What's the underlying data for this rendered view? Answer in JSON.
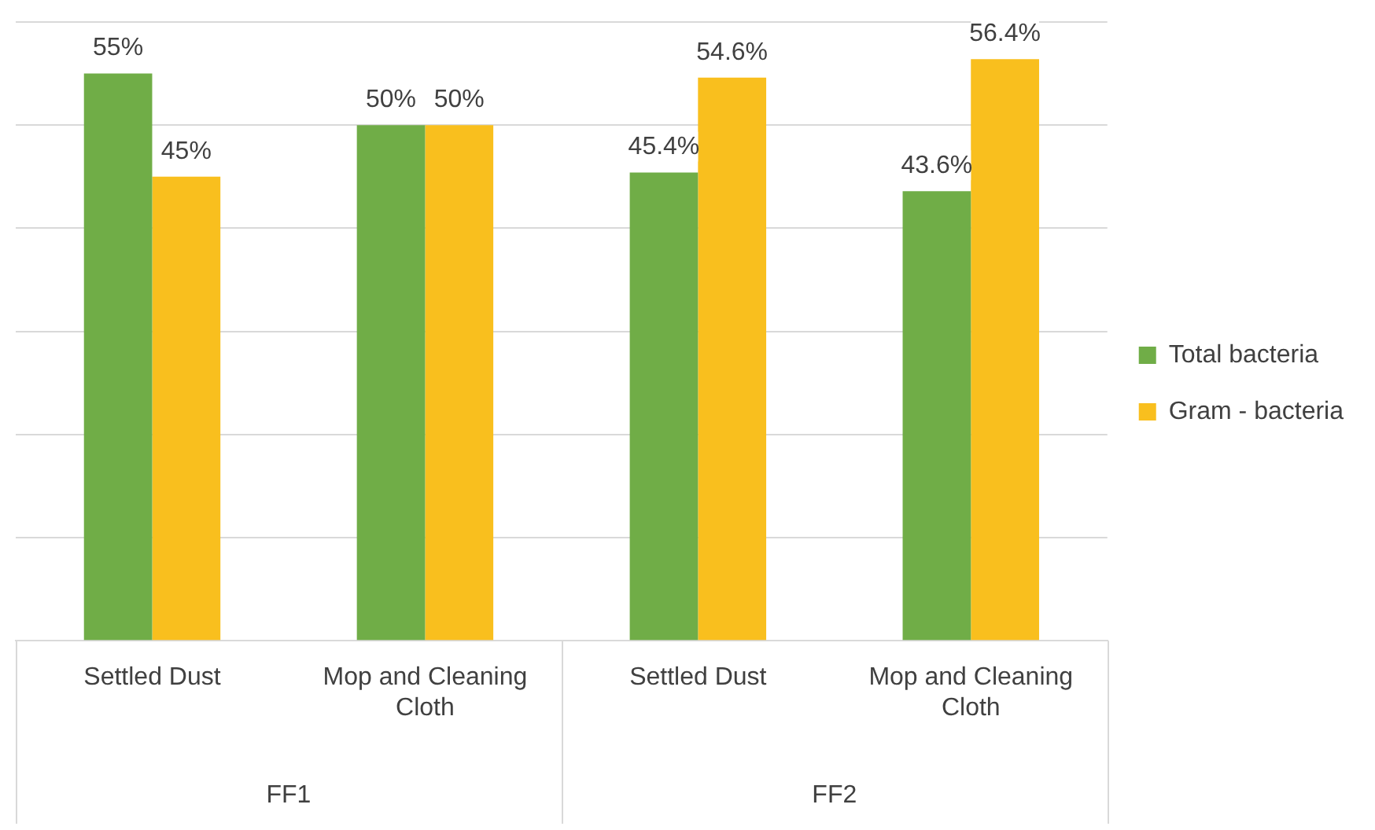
{
  "chart_data": {
    "type": "bar",
    "categories": [
      "Settled Dust",
      "Mop and Cleaning Cloth",
      "Settled Dust",
      "Mop and Cleaning Cloth"
    ],
    "annotations": [
      "FF1",
      "FF2"
    ],
    "series": [
      {
        "name": "Total bacteria",
        "color": "#70ad47",
        "values": [
          55,
          50,
          45.4,
          43.6
        ],
        "value_labels": [
          "55%",
          "50%",
          "45.4%",
          "43.6%"
        ]
      },
      {
        "name": "Gram - bacteria",
        "color": "#f9bf1e",
        "values": [
          45,
          50,
          54.6,
          56.4
        ],
        "value_labels": [
          "45%",
          "50%",
          "54.6%",
          "56.4%"
        ]
      }
    ],
    "ylim": [
      0,
      60
    ],
    "yticks": [
      {
        "value": 0,
        "label": null
      },
      {
        "value": 10,
        "label": null
      },
      {
        "value": 20,
        "label": null
      },
      {
        "value": 30,
        "label": null
      },
      {
        "value": 40,
        "label": null
      },
      {
        "value": 50,
        "label": null
      },
      {
        "value": 60,
        "label": null
      }
    ],
    "tick_labels": "x",
    "grid": "y",
    "legend": "right"
  }
}
